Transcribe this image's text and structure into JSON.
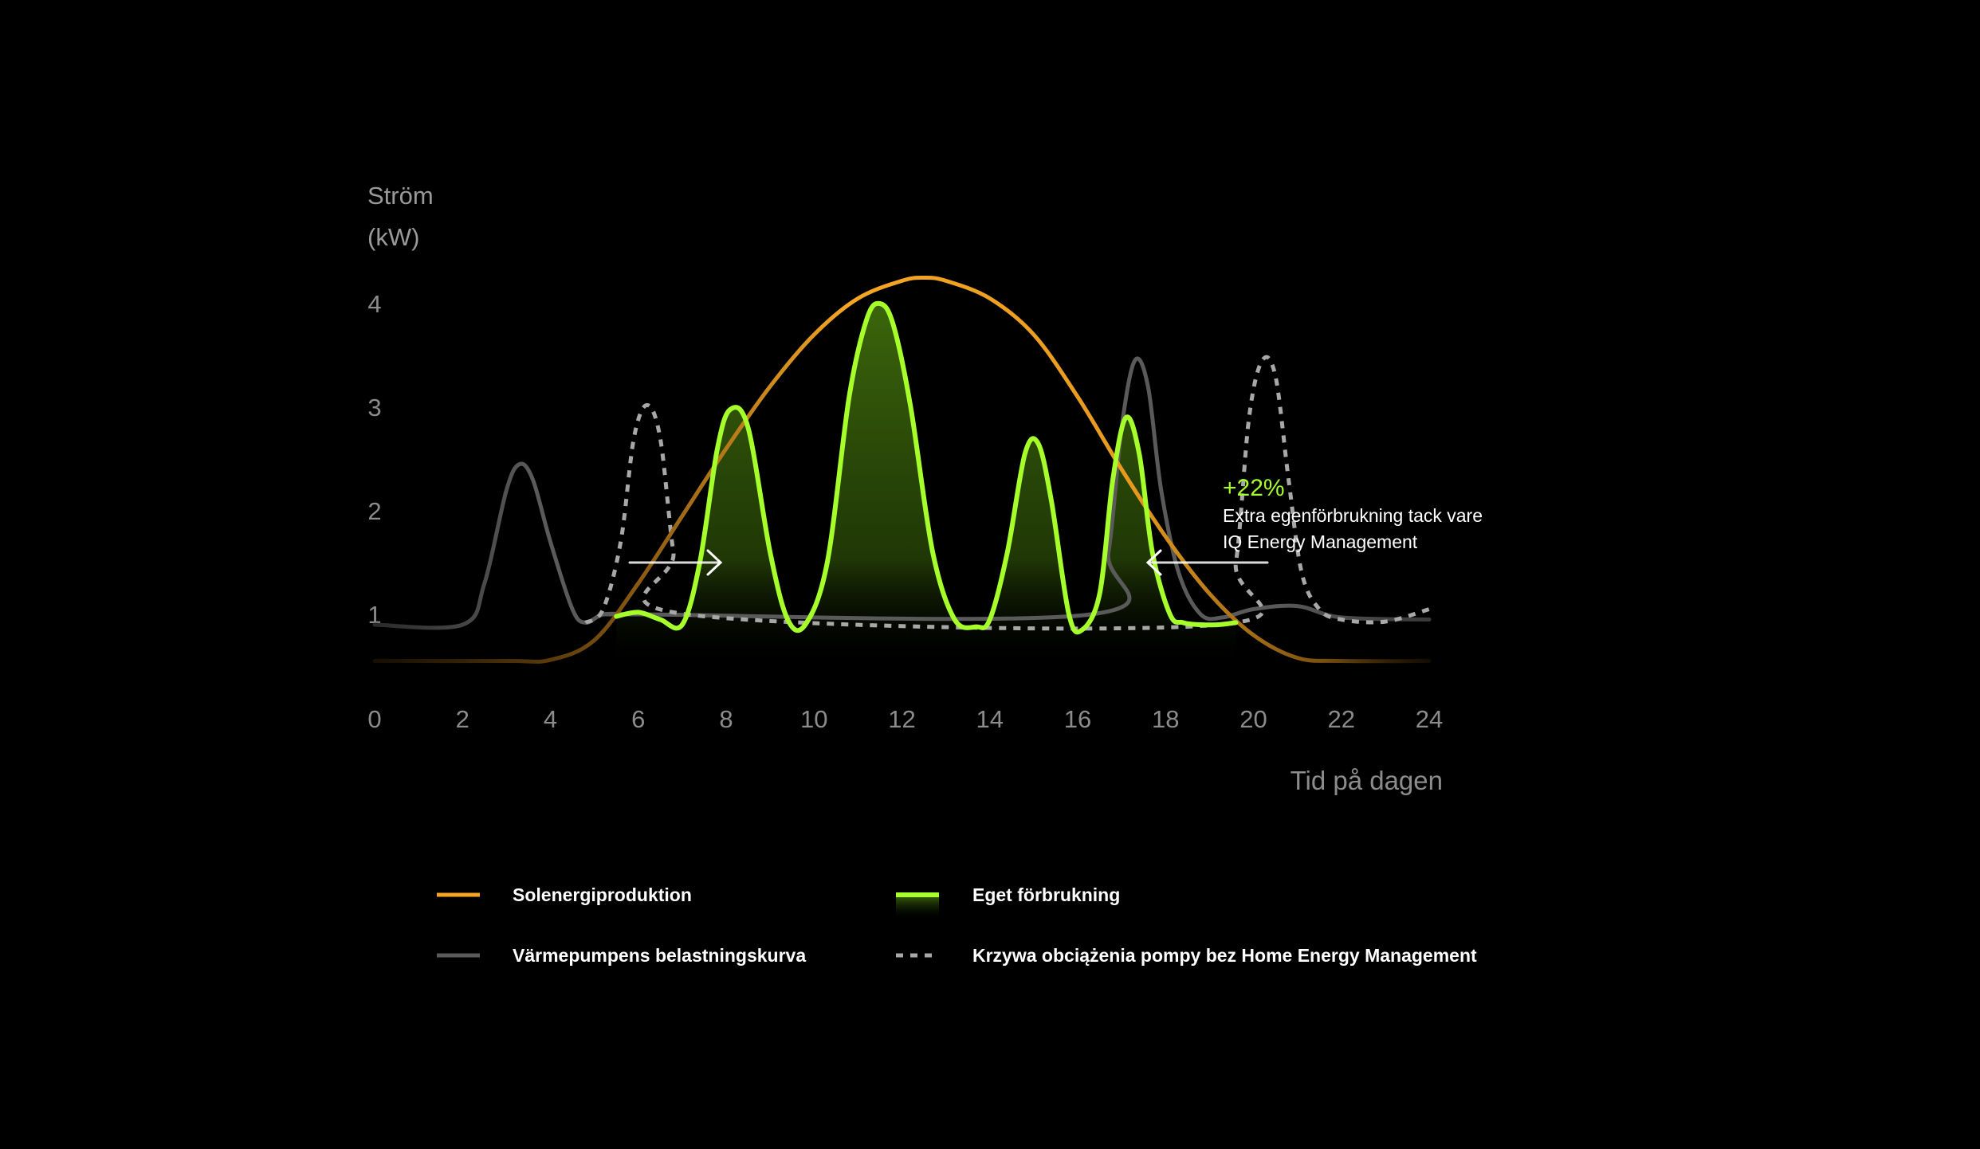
{
  "chart_data": {
    "type": "line",
    "ylabel_lines": [
      "Ström",
      "(kW)"
    ],
    "xlabel": "Tid på dagen",
    "xlim": [
      0,
      24
    ],
    "ylim": [
      0,
      4
    ],
    "x_ticks": [
      0,
      2,
      4,
      6,
      8,
      10,
      12,
      14,
      16,
      18,
      20,
      22,
      24
    ],
    "y_ticks": [
      1,
      2,
      3,
      4
    ],
    "annotation": {
      "value": "+22%",
      "lines": [
        "Extra egenförbrukning tack vare",
        "IQ Energy Management"
      ]
    },
    "series": [
      {
        "key": "solar",
        "name": "Solenergiproduktion",
        "color": "#f5a623",
        "style": "solid",
        "x": [
          0,
          3,
          4,
          5,
          6,
          7,
          8,
          9,
          10,
          11,
          12,
          12.5,
          13,
          14,
          15,
          16,
          17,
          18,
          19,
          20,
          21,
          22,
          24
        ],
        "y": [
          0.55,
          0.55,
          0.56,
          0.75,
          1.3,
          1.95,
          2.6,
          3.2,
          3.7,
          4.05,
          4.22,
          4.25,
          4.22,
          4.05,
          3.7,
          3.1,
          2.4,
          1.75,
          1.2,
          0.8,
          0.58,
          0.55,
          0.55
        ]
      },
      {
        "key": "self",
        "name": "Eget förbrukning",
        "color": "#a6ff2a",
        "style": "solid-filled",
        "x": [
          5.5,
          6,
          6.5,
          7,
          7.4,
          7.8,
          8.1,
          8.5,
          9,
          9.4,
          9.8,
          10.3,
          10.8,
          11.2,
          11.5,
          11.8,
          12.2,
          12.7,
          13.2,
          13.7,
          14,
          14.4,
          14.8,
          15.1,
          15.4,
          15.8,
          16.1,
          16.5,
          16.8,
          17.1,
          17.4,
          17.7,
          18.1,
          18.4,
          18.8,
          19.2,
          19.6
        ],
        "y": [
          0.98,
          1.02,
          0.95,
          0.9,
          1.5,
          2.6,
          2.98,
          2.8,
          1.6,
          0.95,
          0.9,
          1.5,
          3.1,
          3.85,
          4.0,
          3.8,
          3.0,
          1.6,
          0.95,
          0.88,
          0.95,
          1.6,
          2.55,
          2.65,
          2.1,
          1.0,
          0.85,
          1.2,
          2.3,
          2.9,
          2.55,
          1.6,
          1.0,
          0.92,
          0.9,
          0.9,
          0.92
        ]
      },
      {
        "key": "heatpump",
        "name": "Värmepumpens belastningskurva",
        "color": "#5a5a5a",
        "style": "solid",
        "x": [
          0,
          2,
          2.5,
          3,
          3.3,
          3.6,
          4,
          4.5,
          4.8,
          5.2,
          5.8,
          6,
          16.3,
          16.7,
          17,
          17.3,
          17.6,
          17.9,
          18.3,
          18.8,
          19.3,
          20,
          21,
          22,
          24
        ],
        "y": [
          0.9,
          0.9,
          1.3,
          2.2,
          2.45,
          2.3,
          1.7,
          1.05,
          0.92,
          1.0,
          1.0,
          1.0,
          1.0,
          1.6,
          2.8,
          3.45,
          3.2,
          2.2,
          1.4,
          1.0,
          0.97,
          1.05,
          1.08,
          0.97,
          0.95
        ]
      },
      {
        "key": "without_hem",
        "name": "Krzywa obciążenia pompy bez Home Energy Management",
        "color": "#a8a8a8",
        "style": "dashed",
        "x": [
          4.8,
          5.2,
          5.6,
          5.9,
          6.2,
          6.5,
          6.8,
          7.1,
          19.2,
          19.6,
          19.9,
          20.2,
          20.5,
          20.8,
          21.1,
          21.5,
          22,
          23,
          24
        ],
        "y": [
          0.92,
          1.05,
          1.7,
          2.7,
          3.02,
          2.7,
          1.6,
          1.0,
          0.9,
          1.5,
          2.9,
          3.45,
          3.3,
          2.3,
          1.4,
          1.05,
          0.95,
          0.93,
          1.05
        ]
      }
    ],
    "legend": [
      {
        "key": "solar",
        "label": "Solenergiproduktion"
      },
      {
        "key": "self",
        "label": "Eget förbrukning"
      },
      {
        "key": "heatpump",
        "label": "Värmepumpens belastningskurva"
      },
      {
        "key": "without_hem",
        "label": "Krzywa obciążenia pompy bez Home Energy Management"
      }
    ]
  }
}
